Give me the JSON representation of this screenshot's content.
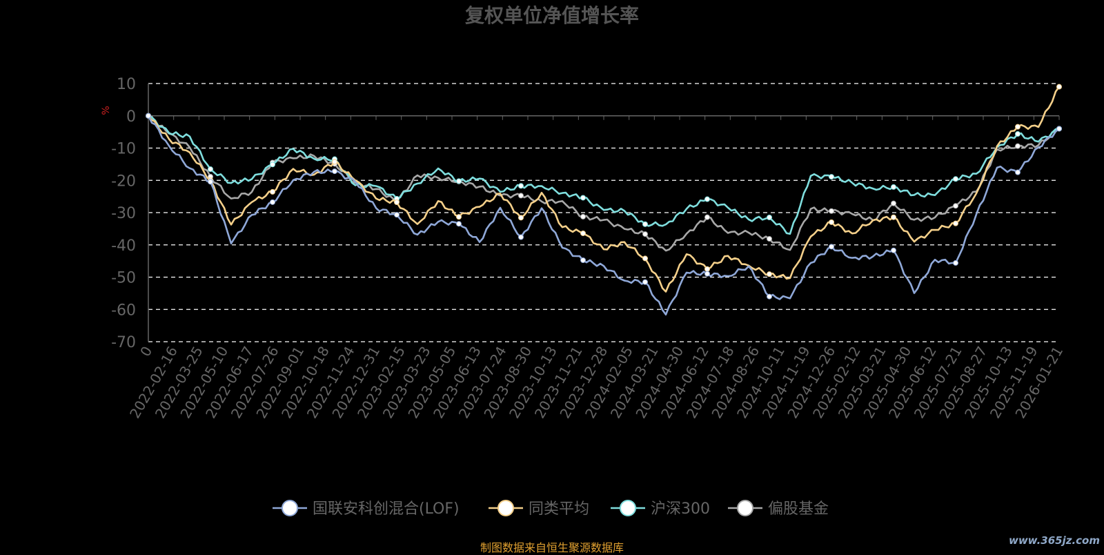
{
  "chart_data": {
    "type": "line",
    "title": "复权单位净值增长率",
    "ylabel": "%",
    "ylim": [
      -70,
      10
    ],
    "yticks": [
      10,
      0,
      -10,
      -20,
      -30,
      -40,
      -50,
      -60,
      -70
    ],
    "xticks": [
      "0",
      "2022-02-16",
      "2022-03-25",
      "2022-05-10",
      "2022-06-17",
      "2022-07-26",
      "2022-09-01",
      "2022-10-18",
      "2022-11-24",
      "2022-12-31",
      "2023-02-15",
      "2023-03-23",
      "2023-05-05",
      "2023-06-13",
      "2023-07-24",
      "2023-08-30",
      "2023-10-13",
      "2023-11-21",
      "2023-12-28",
      "2024-02-05",
      "2024-03-21",
      "2024-04-30",
      "2024-06-12",
      "2024-07-18",
      "2024-08-26",
      "2024-10-11",
      "2024-11-19",
      "2024-12-26",
      "2025-02-12",
      "2025-03-21",
      "2025-04-30",
      "2025-06-12",
      "2025-07-21",
      "2025-08-27",
      "2025-10-13",
      "2025-11-19",
      "2026-01-21"
    ],
    "grid": true,
    "legend_position": "bottom",
    "series": [
      {
        "name": "国联安科创混合(LOF)",
        "color": "#8fa8d8",
        "values": [
          0,
          -10,
          -15,
          -22,
          -38,
          -32,
          -26,
          -20,
          -18,
          -16,
          -22,
          -27,
          -32,
          -36,
          -33,
          -34,
          -38,
          -30,
          -36,
          -30,
          -40,
          -45,
          -47,
          -50,
          -53,
          -60,
          -50,
          -48,
          -50,
          -47,
          -55,
          -58,
          -44,
          -42,
          -43,
          -44,
          -42,
          -54,
          -46,
          -44,
          -32,
          -15,
          -18,
          -10,
          -4
        ]
      },
      {
        "name": "同类平均",
        "color": "#f5d08a",
        "values": [
          0,
          -6,
          -12,
          -20,
          -33,
          -28,
          -22,
          -18,
          -17,
          -15,
          -20,
          -25,
          -28,
          -32,
          -28,
          -30,
          -29,
          -24,
          -31,
          -25,
          -33,
          -38,
          -40,
          -40,
          -44,
          -54,
          -44,
          -46,
          -45,
          -45,
          -50,
          -50,
          -37,
          -34,
          -35,
          -34,
          -30,
          -40,
          -35,
          -33,
          -25,
          -8,
          -5,
          -2,
          9
        ]
      },
      {
        "name": "沪深300",
        "color": "#7fdede",
        "values": [
          0,
          -4,
          -8,
          -15,
          -22,
          -19,
          -15,
          -11,
          -12,
          -15,
          -20,
          -23,
          -25,
          -21,
          -17,
          -19,
          -21,
          -22,
          -23,
          -21,
          -24,
          -26,
          -28,
          -31,
          -32,
          -35,
          -28,
          -26,
          -29,
          -31,
          -33,
          -35,
          -20,
          -18,
          -21,
          -23,
          -21,
          -26,
          -23,
          -21,
          -17,
          -10,
          -6,
          -7,
          -4
        ]
      },
      {
        "name": "偏股基金",
        "color": "#a8a8a8",
        "values": [
          0,
          -6,
          -10,
          -18,
          -27,
          -22,
          -16,
          -12,
          -13,
          -15,
          -20,
          -24,
          -25,
          -20,
          -18,
          -21,
          -22,
          -24,
          -26,
          -25,
          -28,
          -30,
          -33,
          -35,
          -36,
          -43,
          -35,
          -33,
          -35,
          -37,
          -38,
          -41,
          -30,
          -28,
          -32,
          -31,
          -28,
          -32,
          -31,
          -29,
          -22,
          -12,
          -8,
          -10,
          -4
        ]
      }
    ]
  },
  "footer_text": "制图数据来自恒生聚源数据库",
  "watermark_text": "www.365jz.com"
}
